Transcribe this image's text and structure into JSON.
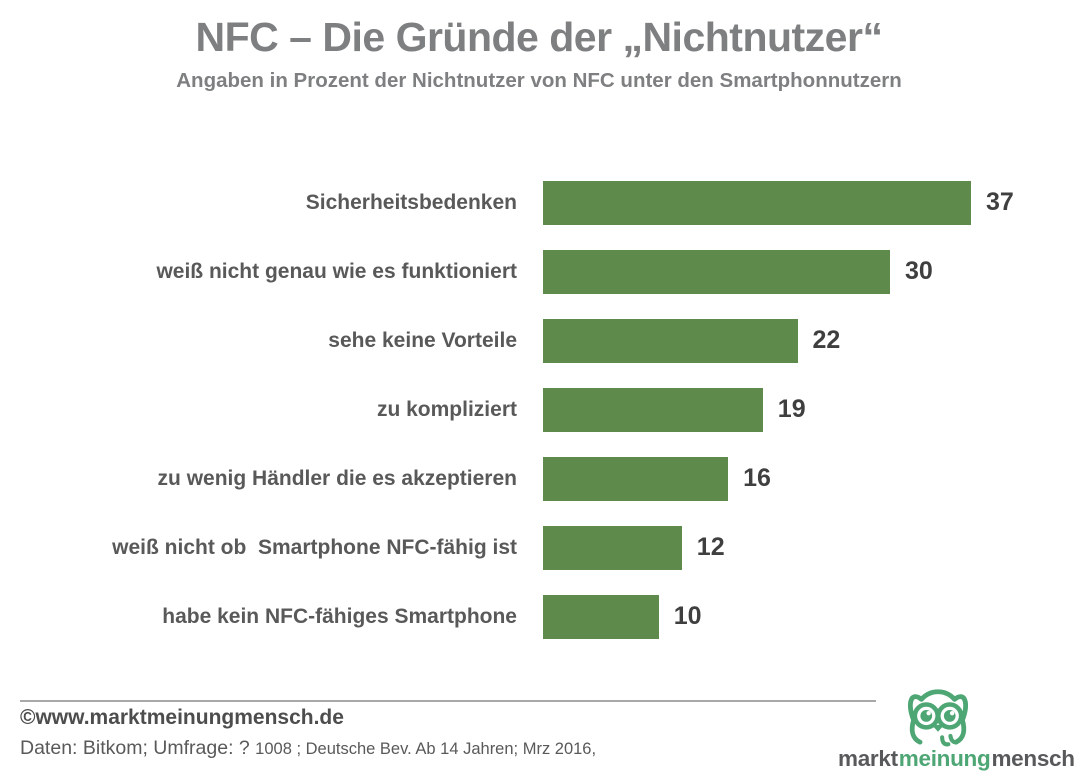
{
  "title": "NFC – Die Gründe der „Nichtnutzer“",
  "subtitle": "Angaben in Prozent der Nichtnutzer von NFC unter den Smartphonnutzern",
  "chart_data": {
    "type": "bar",
    "orientation": "horizontal",
    "title": "NFC – Die Gründe der „Nichtnutzer“",
    "subtitle": "Angaben in Prozent der Nichtnutzer von NFC unter den Smartphonnutzern",
    "categories": [
      "Sicherheitsbedenken",
      "weiß nicht genau wie es funktioniert",
      "sehe keine Vorteile",
      "zu kompliziert",
      "zu wenig Händler die es akzeptieren",
      "weiß nicht ob  Smartphone NFC-fähig ist",
      "habe kein NFC-fähiges Smartphone"
    ],
    "values": [
      37,
      30,
      22,
      19,
      16,
      12,
      10
    ],
    "unit": "percent",
    "xlim": [
      0,
      40
    ],
    "grid": false,
    "legend": false,
    "value_labels": "end-of-bar",
    "bar_color": "#5e8b4c"
  },
  "footer": {
    "copyright": "©www.marktmeinungmensch.de",
    "source_primary": "Daten: Bitkom; Umfrage: ? ",
    "source_secondary": "1008 ; Deutsche Bev. Ab 14 Jahren; Mrz 2016,"
  },
  "logo": {
    "word1": "markt",
    "word2": "meinung",
    "word3": "mensch",
    "owl_icon": "owl-icon",
    "green": "#4da674",
    "gray": "#58595b"
  },
  "colors": {
    "title_gray": "#7e7f80",
    "category_label_gray": "#595959",
    "value_label_gray": "#3f3f3f",
    "bar_green": "#5e8b4c",
    "separator_gray": "#a8a8a8"
  }
}
